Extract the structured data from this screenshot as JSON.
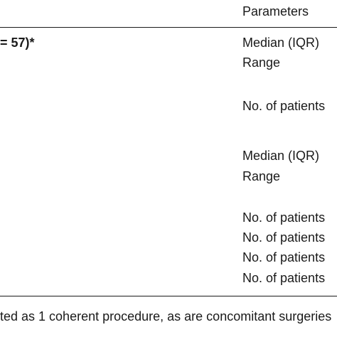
{
  "table": {
    "header": {
      "parameters": "Parameters"
    },
    "group_heading": "= 57)*",
    "rows": [
      {
        "label": "Median (IQR)"
      },
      {
        "label": "Range"
      },
      {
        "label": "No. of patients"
      },
      {
        "label": "Median (IQR)"
      },
      {
        "label": "Range"
      },
      {
        "label": "No. of patients"
      },
      {
        "label": "No. of patients"
      },
      {
        "label": "No. of patients"
      },
      {
        "label": "No. of patients"
      }
    ]
  },
  "footnote": "ted as 1 coherent procedure, as are concomitant surgeries"
}
